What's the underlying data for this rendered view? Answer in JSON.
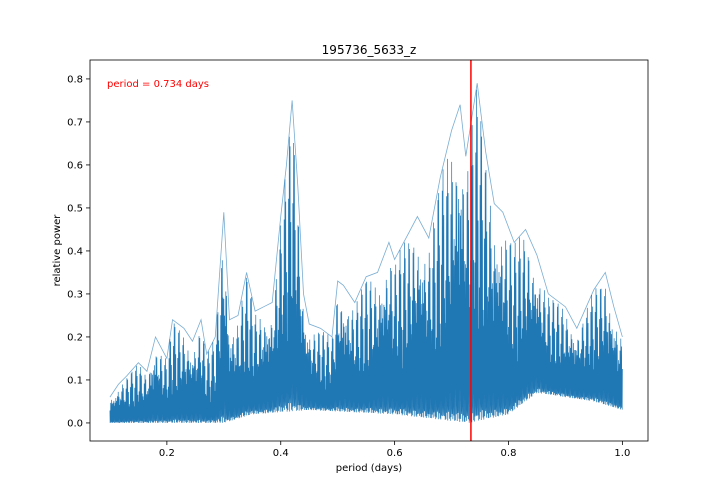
{
  "chart_data": {
    "type": "line",
    "title": "195736_5633_z",
    "xlabel": "period (days)",
    "ylabel": "relative power",
    "xlim": [
      0.065,
      1.045
    ],
    "ylim": [
      -0.042,
      0.844
    ],
    "xticks": [
      0.2,
      0.4,
      0.6,
      0.8,
      1.0
    ],
    "xtick_labels": [
      "0.2",
      "0.4",
      "0.6",
      "0.8",
      "1.0"
    ],
    "yticks": [
      0.0,
      0.1,
      0.2,
      0.3,
      0.4,
      0.5,
      0.6,
      0.7,
      0.8
    ],
    "ytick_labels": [
      "0.0",
      "0.1",
      "0.2",
      "0.3",
      "0.4",
      "0.5",
      "0.6",
      "0.7",
      "0.8"
    ],
    "grid": false,
    "series": [
      {
        "color": "#1f77b4",
        "style": "dense periodogram with many narrow oscillating peaks",
        "peak_envelope": {
          "x": [
            0.1,
            0.115,
            0.13,
            0.15,
            0.165,
            0.18,
            0.2,
            0.21,
            0.23,
            0.245,
            0.26,
            0.27,
            0.285,
            0.3,
            0.31,
            0.325,
            0.34,
            0.355,
            0.37,
            0.385,
            0.4,
            0.41,
            0.42,
            0.43,
            0.44,
            0.45,
            0.47,
            0.49,
            0.5,
            0.51,
            0.53,
            0.55,
            0.57,
            0.59,
            0.6,
            0.62,
            0.64,
            0.66,
            0.68,
            0.7,
            0.715,
            0.725,
            0.745,
            0.76,
            0.775,
            0.79,
            0.81,
            0.83,
            0.85,
            0.87,
            0.9,
            0.92,
            0.95,
            0.97,
            0.985,
            1.0
          ],
          "y": [
            0.06,
            0.09,
            0.11,
            0.14,
            0.12,
            0.2,
            0.15,
            0.24,
            0.22,
            0.19,
            0.24,
            0.16,
            0.2,
            0.49,
            0.24,
            0.25,
            0.35,
            0.26,
            0.27,
            0.28,
            0.48,
            0.6,
            0.75,
            0.55,
            0.3,
            0.23,
            0.22,
            0.2,
            0.33,
            0.32,
            0.28,
            0.34,
            0.35,
            0.42,
            0.38,
            0.43,
            0.48,
            0.43,
            0.57,
            0.68,
            0.74,
            0.62,
            0.79,
            0.63,
            0.51,
            0.49,
            0.42,
            0.45,
            0.39,
            0.3,
            0.27,
            0.22,
            0.31,
            0.35,
            0.27,
            0.2
          ]
        },
        "trough_envelope": {
          "x": [
            0.1,
            0.3,
            0.35,
            0.45,
            0.6,
            0.73,
            0.8,
            0.85,
            0.9,
            0.95,
            1.0
          ],
          "y": [
            0.0,
            0.0,
            0.02,
            0.03,
            0.02,
            0.0,
            0.02,
            0.07,
            0.06,
            0.05,
            0.03
          ]
        }
      }
    ],
    "vline": {
      "x": 0.734,
      "color": "#ff0000"
    },
    "annotation": {
      "text": "period = 0.734 days",
      "color": "#ff0000",
      "placement": "top-left"
    }
  }
}
